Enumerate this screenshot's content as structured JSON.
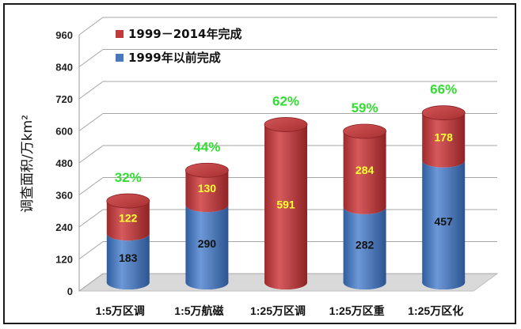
{
  "chart_data": {
    "type": "bar",
    "ylabel": "调查面积/万km²",
    "ylim": [
      0,
      960
    ],
    "yticks": [
      0,
      120,
      240,
      360,
      480,
      600,
      720,
      840,
      960
    ],
    "grid": true,
    "legend_position": "top-left",
    "categories": [
      "1:5万区调",
      "1:5万航磁",
      "1:25万区调",
      "1:25万区重",
      "1:25万区化"
    ],
    "series": [
      {
        "name": "1999年以前完成",
        "color": "#4a78bf",
        "values": [
          183,
          290,
          0,
          282,
          457
        ]
      },
      {
        "name": "1999－2014年完成",
        "color": "#c0393b",
        "values": [
          122,
          130,
          591,
          284,
          178
        ]
      }
    ],
    "percent_labels": [
      "32%",
      "44%",
      "62%",
      "59%",
      "66%"
    ],
    "legend": [
      {
        "label": "1999－2014年完成",
        "color": "#c0393b"
      },
      {
        "label": "1999年以前完成",
        "color": "#4a78bf"
      }
    ],
    "label_colors": {
      "percent": "#33dd33",
      "red_values": "#ffff33",
      "blue_values": "#111111"
    }
  }
}
